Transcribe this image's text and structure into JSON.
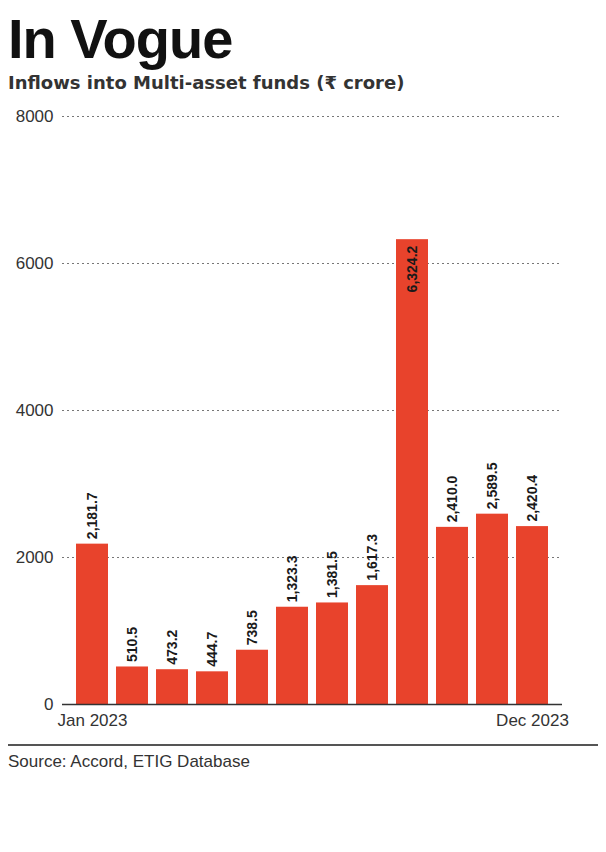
{
  "chart_data": {
    "type": "bar",
    "title": "In Vogue",
    "subtitle": "Inflows into Multi-asset funds (₹ crore)",
    "source": "Source: Accord, ETIG Database",
    "categories": [
      "Jan 2023",
      null,
      null,
      null,
      null,
      null,
      null,
      null,
      null,
      null,
      null,
      "Dec 2023"
    ],
    "values": [
      2181.7,
      510.5,
      473.2,
      444.7,
      738.5,
      1323.3,
      1381.5,
      1617.3,
      6324.2,
      2410.0,
      2589.5,
      2420.4
    ],
    "value_labels": [
      "2,181.7",
      "510.5",
      "473.2",
      "444.7",
      "738.5",
      "1,323.3",
      "1,381.5",
      "1,617.3",
      "6,324.2",
      "2,410.0",
      "2,589.5",
      "2,420.4"
    ],
    "color": "#e8432c",
    "ylim": [
      0,
      8000
    ],
    "yticks": [
      0,
      2000,
      4000,
      6000,
      8000
    ],
    "grid": true,
    "data_labels": true
  }
}
